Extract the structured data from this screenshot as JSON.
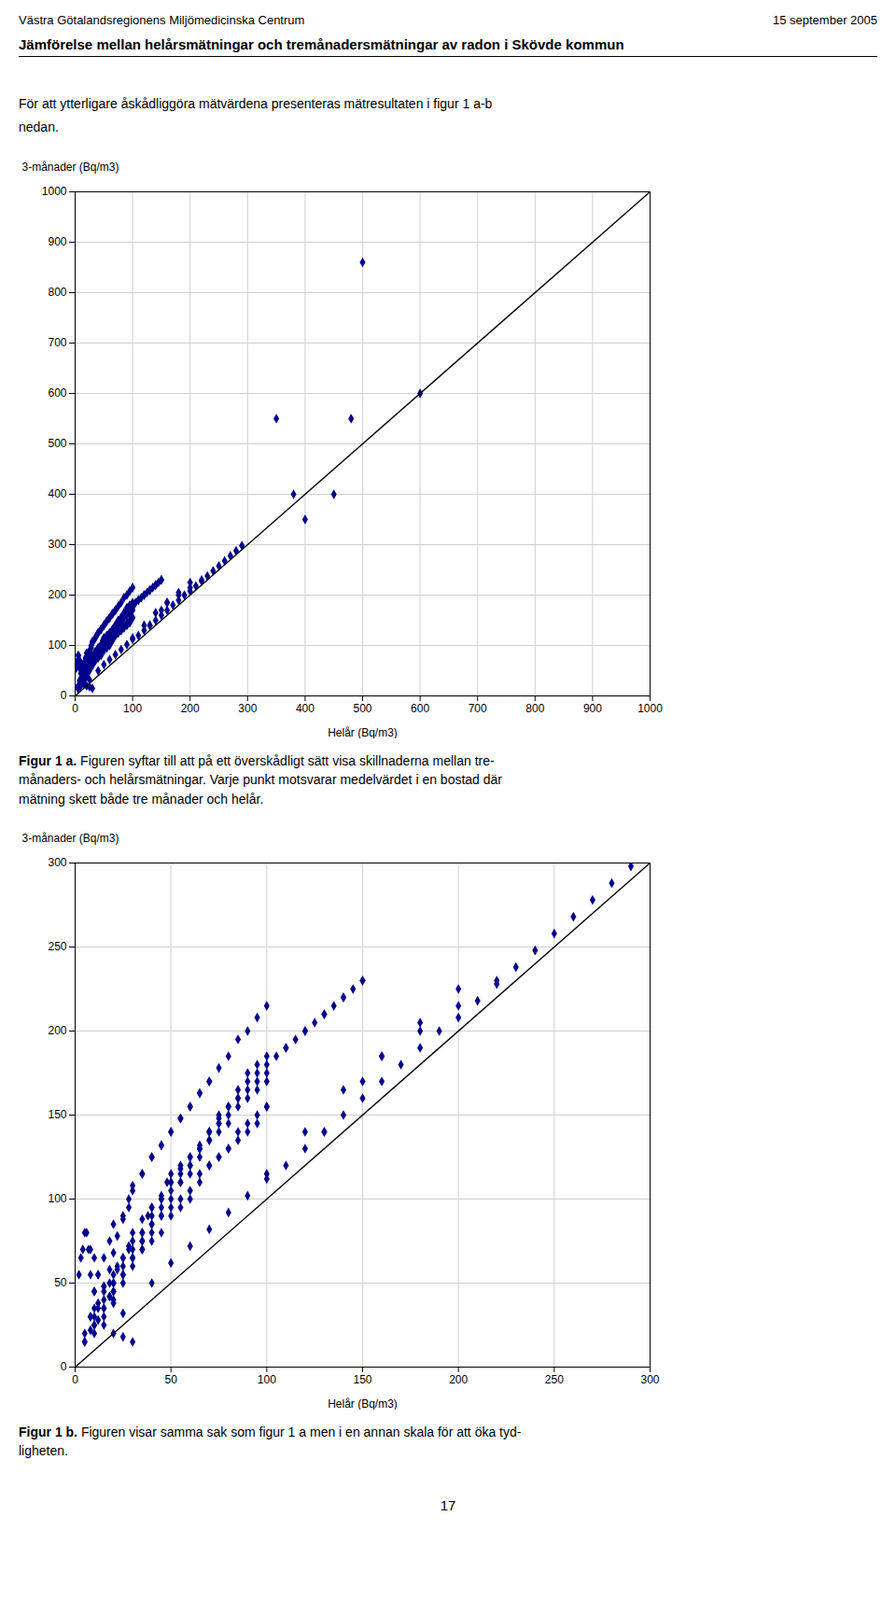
{
  "chart_data": [
    {
      "type": "scatter",
      "title": "Jämförelse mellan helårsmätningar och tremånadersmätningar av radon i Skövde kommun",
      "annotations": [
        "Västra Götalandsregionens Miljömedicinska Centrum",
        "15 september 2005",
        "För att ytterligare åskådliggöra mätvärdena presenteras mätresultaten i figur 1 a-b",
        "nedan.",
        "Figur 1 a.",
        " Figuren syftar till att på ett överskådligt sätt visa skillnaderna mellan tre-\nmånaders- och helårsmätningar. Varje punkt motsvarar medelvärdet i en bostad där\nmätning skett både tre månader och helår."
      ],
      "x_label": "Helår (Bq/m3)",
      "y_label": "3-månader (Bq/m3)",
      "xlim": [
        0,
        1000
      ],
      "ylim": [
        0,
        1000
      ],
      "xticks": [
        0,
        100,
        200,
        300,
        400,
        500,
        600,
        700,
        800,
        900,
        1000
      ],
      "yticks": [
        0,
        100,
        200,
        300,
        400,
        500,
        600,
        700,
        800,
        900,
        1000
      ],
      "grid": true,
      "series": [
        {
          "type": "scatter",
          "color": "#00008B",
          "marker": "diamond",
          "x": [
            5,
            8,
            10,
            15,
            18,
            20,
            22,
            25,
            28,
            30,
            35,
            38,
            40,
            45,
            48,
            50,
            55,
            60,
            65,
            70,
            75,
            80,
            85,
            90,
            95,
            100,
            15,
            20,
            25,
            30,
            35,
            40,
            45,
            50,
            55,
            60,
            65,
            70,
            75,
            80,
            85,
            90,
            95,
            100,
            110,
            120,
            130,
            140,
            150,
            10,
            15,
            20,
            25,
            30,
            35,
            40,
            45,
            50,
            55,
            60,
            65,
            70,
            75,
            80,
            85,
            90,
            95,
            100,
            20,
            25,
            30,
            35,
            40,
            45,
            50,
            55,
            60,
            65,
            70,
            75,
            80,
            85,
            90,
            95,
            100,
            105,
            110,
            115,
            120,
            125,
            130,
            135,
            140,
            145,
            150,
            5,
            10,
            15,
            20,
            25,
            30,
            35,
            40,
            45,
            50,
            55,
            60,
            65,
            70,
            75,
            80,
            85,
            90,
            95,
            100,
            30,
            35,
            40,
            45,
            50,
            55,
            60,
            65,
            70,
            75,
            80,
            85,
            90,
            95,
            100,
            10,
            12,
            15,
            18,
            20,
            22,
            25,
            28,
            30,
            35,
            40,
            45,
            50,
            55,
            60,
            65,
            70,
            75,
            80,
            100,
            120,
            140,
            160,
            180,
            200,
            350,
            380,
            400,
            450,
            480,
            500,
            600,
            130,
            150,
            160,
            180,
            200,
            220,
            40,
            50,
            60,
            70,
            80,
            90,
            100,
            110,
            120,
            130,
            140,
            150,
            160,
            170,
            180,
            190,
            200,
            210,
            220,
            230,
            240,
            250,
            260,
            270,
            280,
            290,
            5,
            8,
            10,
            12,
            15,
            18,
            20,
            25,
            28,
            30,
            35,
            40,
            45,
            50,
            55,
            60,
            65,
            70,
            8,
            10,
            12,
            15,
            18,
            20,
            22,
            25,
            28,
            30,
            35,
            40,
            45,
            50,
            55,
            60,
            65,
            70,
            75,
            80,
            85,
            90,
            95,
            100,
            3,
            5,
            7,
            8,
            10,
            12,
            15,
            20,
            25,
            30,
            2,
            4,
            6,
            8,
            10,
            12,
            15,
            18,
            20,
            25
          ],
          "values": [
            20,
            30,
            35,
            45,
            50,
            55,
            60,
            65,
            70,
            75,
            80,
            90,
            95,
            100,
            110,
            115,
            120,
            125,
            130,
            135,
            140,
            145,
            155,
            160,
            165,
            170,
            30,
            40,
            50,
            60,
            70,
            80,
            90,
            100,
            110,
            115,
            125,
            135,
            145,
            155,
            165,
            175,
            180,
            185,
            190,
            200,
            210,
            220,
            230,
            25,
            40,
            50,
            60,
            70,
            80,
            90,
            100,
            110,
            115,
            120,
            130,
            140,
            145,
            150,
            160,
            165,
            170,
            175,
            45,
            55,
            65,
            75,
            85,
            95,
            105,
            110,
            120,
            130,
            140,
            150,
            155,
            160,
            170,
            175,
            180,
            185,
            190,
            195,
            200,
            205,
            210,
            215,
            220,
            225,
            230,
            15,
            25,
            35,
            45,
            55,
            65,
            75,
            85,
            90,
            95,
            100,
            105,
            115,
            120,
            125,
            130,
            135,
            140,
            145,
            155,
            65,
            70,
            75,
            80,
            90,
            95,
            100,
            110,
            120,
            125,
            130,
            140,
            145,
            150,
            155,
            20,
            28,
            35,
            42,
            50,
            58,
            65,
            72,
            80,
            88,
            95,
            102,
            110,
            118,
            125,
            132,
            140,
            148,
            155,
            115,
            140,
            165,
            185,
            205,
            225,
            550,
            400,
            350,
            400,
            550,
            860,
            600,
            140,
            170,
            185,
            200,
            215,
            230,
            50,
            62,
            72,
            82,
            92,
            102,
            112,
            120,
            130,
            140,
            150,
            160,
            170,
            180,
            190,
            200,
            208,
            218,
            228,
            238,
            248,
            258,
            268,
            278,
            288,
            298,
            15,
            30,
            45,
            55,
            65,
            75,
            85,
            90,
            100,
            108,
            115,
            125,
            132,
            140,
            148,
            155,
            163,
            170,
            22,
            30,
            38,
            48,
            58,
            68,
            78,
            88,
            95,
            105,
            115,
            125,
            132,
            140,
            148,
            155,
            163,
            170,
            178,
            185,
            195,
            200,
            208,
            215,
            65,
            80,
            70,
            55,
            45,
            35,
            25,
            20,
            18,
            15,
            55,
            70,
            80,
            70,
            65,
            55,
            48,
            42,
            38,
            32
          ]
        },
        {
          "type": "line",
          "color": "black",
          "line_style": "solid",
          "x": [
            0,
            1000
          ],
          "values": [
            0,
            1000
          ]
        }
      ]
    },
    {
      "type": "scatter",
      "annotations": [
        "Figur 1 b.",
        " Figuren visar samma sak som figur 1 a men i en annan skala för att öka tyd-\nligheten.",
        "17"
      ],
      "x_label": "Helår (Bq/m3)",
      "y_label": "3-månader (Bq/m3)",
      "xlim": [
        0,
        300
      ],
      "ylim": [
        0,
        300
      ],
      "xticks": [
        0,
        50,
        100,
        150,
        200,
        250,
        300
      ],
      "yticks": [
        0,
        50,
        100,
        150,
        200,
        250,
        300
      ],
      "grid": true,
      "series": [
        {
          "type": "scatter",
          "color": "#00008B",
          "marker": "diamond",
          "x": [
            5,
            8,
            10,
            15,
            18,
            20,
            22,
            25,
            28,
            30,
            35,
            38,
            40,
            45,
            48,
            50,
            55,
            60,
            65,
            70,
            75,
            80,
            85,
            90,
            95,
            100,
            15,
            20,
            25,
            30,
            35,
            40,
            45,
            50,
            55,
            60,
            65,
            70,
            75,
            80,
            85,
            90,
            95,
            100,
            110,
            120,
            130,
            140,
            150,
            10,
            15,
            20,
            25,
            30,
            35,
            40,
            45,
            50,
            55,
            60,
            65,
            70,
            75,
            80,
            85,
            90,
            95,
            100,
            20,
            25,
            30,
            35,
            40,
            45,
            50,
            55,
            60,
            65,
            70,
            75,
            80,
            85,
            90,
            95,
            100,
            105,
            110,
            115,
            120,
            125,
            130,
            135,
            140,
            145,
            150,
            5,
            10,
            15,
            20,
            25,
            30,
            35,
            40,
            45,
            50,
            55,
            60,
            65,
            70,
            75,
            80,
            85,
            90,
            95,
            100,
            30,
            35,
            40,
            45,
            50,
            55,
            60,
            65,
            70,
            75,
            80,
            85,
            90,
            95,
            100,
            10,
            12,
            15,
            18,
            20,
            22,
            25,
            28,
            30,
            35,
            40,
            45,
            50,
            55,
            60,
            65,
            70,
            75,
            80,
            100,
            120,
            140,
            160,
            180,
            200,
            130,
            150,
            160,
            180,
            200,
            220,
            40,
            50,
            60,
            70,
            80,
            90,
            100,
            110,
            120,
            130,
            140,
            150,
            160,
            170,
            180,
            190,
            200,
            210,
            220,
            230,
            240,
            250,
            260,
            270,
            280,
            290,
            5,
            8,
            10,
            12,
            15,
            18,
            20,
            25,
            28,
            30,
            35,
            40,
            45,
            50,
            55,
            60,
            65,
            70,
            8,
            10,
            12,
            15,
            18,
            20,
            22,
            25,
            28,
            30,
            35,
            40,
            45,
            50,
            55,
            60,
            65,
            70,
            75,
            80,
            85,
            90,
            95,
            100,
            3,
            5,
            7,
            8,
            10,
            12,
            15,
            20,
            25,
            30,
            2,
            4,
            6,
            8,
            10,
            12,
            15,
            18,
            20,
            25
          ],
          "values": [
            20,
            30,
            35,
            45,
            50,
            55,
            60,
            65,
            70,
            75,
            80,
            90,
            95,
            100,
            110,
            115,
            120,
            125,
            130,
            135,
            140,
            145,
            155,
            160,
            165,
            170,
            30,
            40,
            50,
            60,
            70,
            80,
            90,
            100,
            110,
            115,
            125,
            135,
            145,
            155,
            165,
            175,
            180,
            185,
            190,
            200,
            210,
            220,
            230,
            25,
            40,
            50,
            60,
            70,
            80,
            90,
            100,
            110,
            115,
            120,
            130,
            140,
            145,
            150,
            160,
            165,
            170,
            175,
            45,
            55,
            65,
            75,
            85,
            95,
            105,
            110,
            120,
            130,
            140,
            150,
            155,
            160,
            170,
            175,
            180,
            185,
            190,
            195,
            200,
            205,
            210,
            215,
            220,
            225,
            230,
            15,
            25,
            35,
            45,
            55,
            65,
            75,
            85,
            90,
            95,
            100,
            105,
            115,
            120,
            125,
            130,
            135,
            140,
            145,
            155,
            65,
            70,
            75,
            80,
            90,
            95,
            100,
            110,
            120,
            125,
            130,
            140,
            145,
            150,
            155,
            20,
            28,
            35,
            42,
            50,
            58,
            65,
            72,
            80,
            88,
            95,
            102,
            110,
            118,
            125,
            132,
            140,
            148,
            155,
            115,
            140,
            165,
            185,
            205,
            225,
            140,
            170,
            185,
            200,
            215,
            230,
            50,
            62,
            72,
            82,
            92,
            102,
            112,
            120,
            130,
            140,
            150,
            160,
            170,
            180,
            190,
            200,
            208,
            218,
            228,
            238,
            248,
            258,
            268,
            278,
            288,
            298,
            15,
            30,
            45,
            55,
            65,
            75,
            85,
            90,
            100,
            108,
            115,
            125,
            132,
            140,
            148,
            155,
            163,
            170,
            22,
            30,
            38,
            48,
            58,
            68,
            78,
            88,
            95,
            105,
            115,
            125,
            132,
            140,
            148,
            155,
            163,
            170,
            178,
            185,
            195,
            200,
            208,
            215,
            65,
            80,
            70,
            55,
            45,
            35,
            25,
            20,
            18,
            15,
            55,
            70,
            80,
            70,
            65,
            55,
            48,
            42,
            38,
            32
          ]
        },
        {
          "type": "line",
          "color": "black",
          "line_style": "solid",
          "x": [
            0,
            300
          ],
          "values": [
            0,
            300
          ]
        }
      ]
    }
  ]
}
